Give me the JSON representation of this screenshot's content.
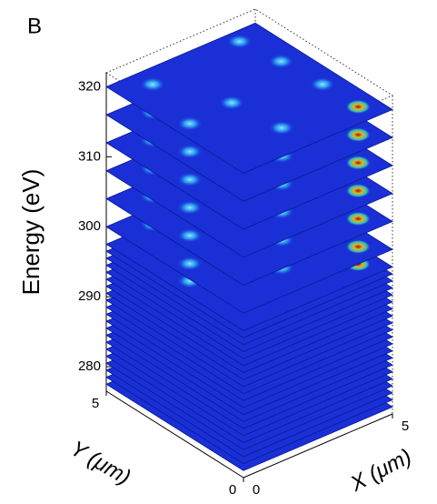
{
  "chart_data": {
    "type": "slice-stack",
    "panel_label": "B",
    "zlabel": "Energy (eV)",
    "xlabel": "X (μm)",
    "ylabel": "Y (μm)",
    "zlim": [
      276.5,
      322
    ],
    "zticks": [
      280,
      290,
      300,
      310,
      320
    ],
    "xlim": [
      0,
      5
    ],
    "xticks": [
      0,
      5
    ],
    "ylim": [
      0,
      5
    ],
    "yticks": [
      0,
      5
    ],
    "color": "#1a2fd6",
    "values": [
      277.5,
      278.5,
      279.5,
      280.5,
      281.5,
      282.5,
      283.5,
      284.5,
      285.5,
      286.5,
      287.5,
      288.5,
      289.5,
      290.5,
      291.5,
      292.5,
      293.5,
      294.5,
      295.5,
      296.5,
      297.5,
      300,
      304,
      308,
      312,
      316,
      320
    ]
  }
}
